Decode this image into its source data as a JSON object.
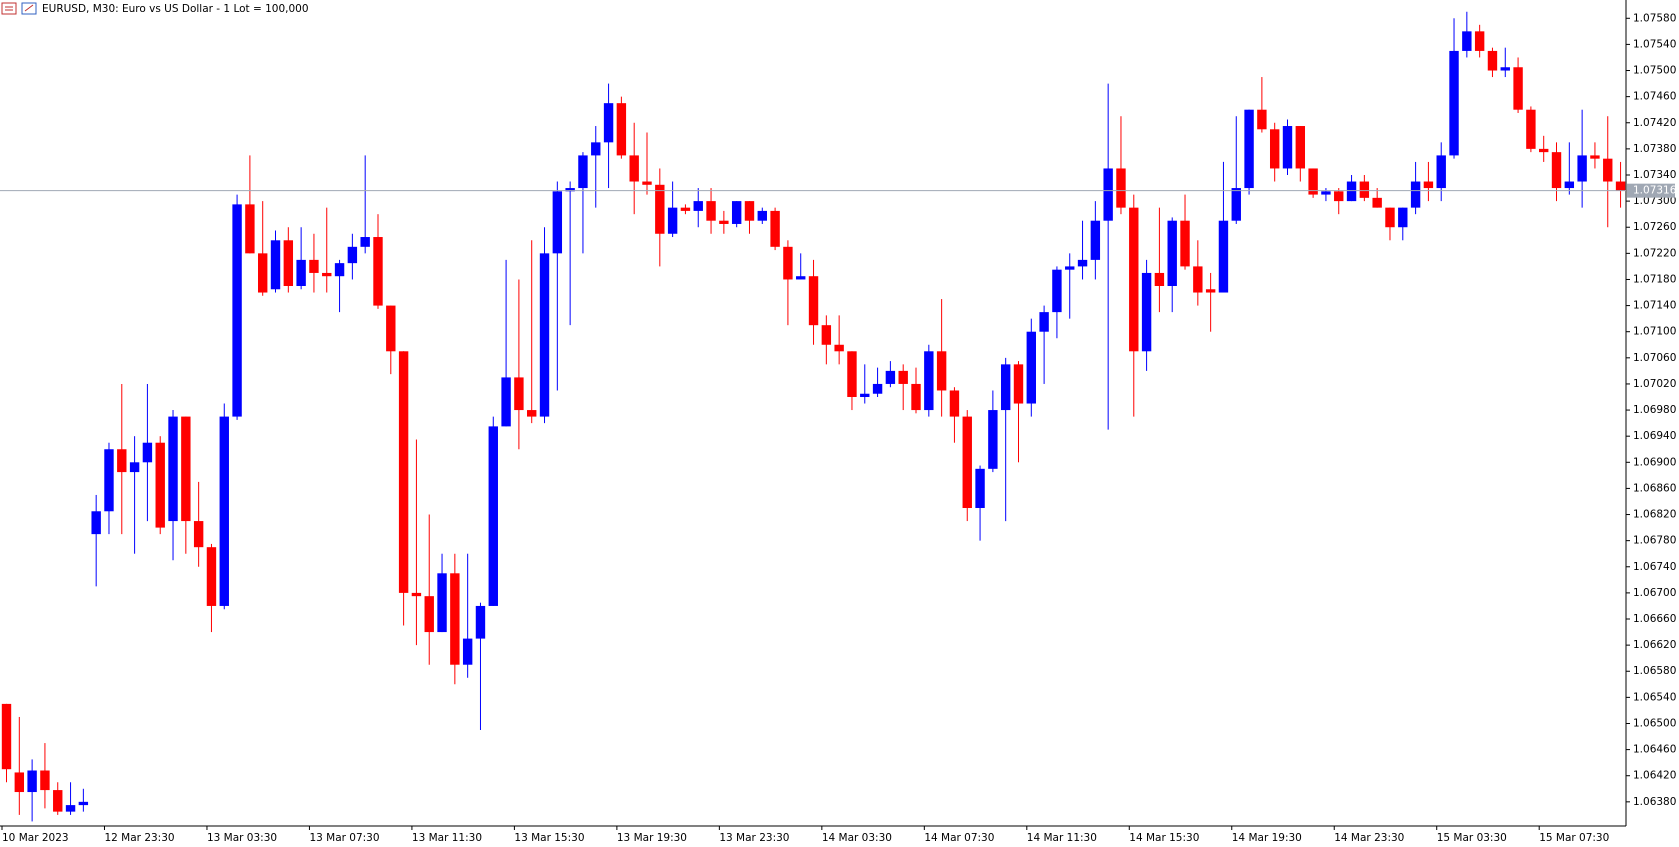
{
  "chart_data": {
    "type": "candlestick",
    "title": "EURUSD, M30:  Euro vs US Dollar - 1 Lot = 100,000",
    "up_color": "#0000ff",
    "down_color": "#ff0000",
    "last_price": 1.07316,
    "ylim": [
      1.06343,
      1.07608
    ],
    "yticks": [
      {
        "value": 1.0638,
        "label": "1.06380"
      },
      {
        "value": 1.0642,
        "label": "1.06420"
      },
      {
        "value": 1.0646,
        "label": "1.06460"
      },
      {
        "value": 1.065,
        "label": "1.06500"
      },
      {
        "value": 1.0654,
        "label": "1.06540"
      },
      {
        "value": 1.0658,
        "label": "1.06580"
      },
      {
        "value": 1.0662,
        "label": "1.06620"
      },
      {
        "value": 1.0666,
        "label": "1.06660"
      },
      {
        "value": 1.067,
        "label": "1.06700"
      },
      {
        "value": 1.0674,
        "label": "1.06740"
      },
      {
        "value": 1.0678,
        "label": "1.06780"
      },
      {
        "value": 1.0682,
        "label": "1.06820"
      },
      {
        "value": 1.0686,
        "label": "1.06860"
      },
      {
        "value": 1.069,
        "label": "1.06900"
      },
      {
        "value": 1.0694,
        "label": "1.06940"
      },
      {
        "value": 1.0698,
        "label": "1.06980"
      },
      {
        "value": 1.0702,
        "label": "1.07020"
      },
      {
        "value": 1.0706,
        "label": "1.07060"
      },
      {
        "value": 1.071,
        "label": "1.07100"
      },
      {
        "value": 1.0714,
        "label": "1.07140"
      },
      {
        "value": 1.0718,
        "label": "1.07180"
      },
      {
        "value": 1.0722,
        "label": "1.07220"
      },
      {
        "value": 1.0726,
        "label": "1.07260"
      },
      {
        "value": 1.073,
        "label": "1.07300"
      },
      {
        "value": 1.0734,
        "label": "1.07340"
      },
      {
        "value": 1.0738,
        "label": "1.07380"
      },
      {
        "value": 1.0742,
        "label": "1.07420"
      },
      {
        "value": 1.0746,
        "label": "1.07460"
      },
      {
        "value": 1.075,
        "label": "1.07500"
      },
      {
        "value": 1.0754,
        "label": "1.07540"
      },
      {
        "value": 1.0758,
        "label": "1.07580"
      }
    ],
    "categories": [
      "10 Mar 2023",
      null,
      null,
      null,
      null,
      null,
      null,
      null,
      "12 Mar 23:30",
      null,
      null,
      null,
      null,
      null,
      null,
      null,
      "13 Mar 03:30",
      null,
      null,
      null,
      null,
      null,
      null,
      null,
      "13 Mar 07:30",
      null,
      null,
      null,
      null,
      null,
      null,
      null,
      "13 Mar 11:30",
      null,
      null,
      null,
      null,
      null,
      null,
      null,
      "13 Mar 15:30",
      null,
      null,
      null,
      null,
      null,
      null,
      null,
      "13 Mar 19:30",
      null,
      null,
      null,
      null,
      null,
      null,
      null,
      "13 Mar 23:30",
      null,
      null,
      null,
      null,
      null,
      null,
      null,
      "14 Mar 03:30",
      null,
      null,
      null,
      null,
      null,
      null,
      null,
      "14 Mar 07:30",
      null,
      null,
      null,
      null,
      null,
      null,
      null,
      "14 Mar 11:30",
      null,
      null,
      null,
      null,
      null,
      null,
      null,
      "14 Mar 15:30",
      null,
      null,
      null,
      null,
      null,
      null,
      null,
      "14 Mar 19:30",
      null,
      null,
      null,
      null,
      null,
      null,
      null,
      "14 Mar 23:30",
      null,
      null,
      null,
      null,
      null,
      null,
      null,
      "15 Mar 03:30",
      null,
      null,
      null,
      null,
      null,
      null,
      null,
      "15 Mar 07:30",
      null,
      null,
      null,
      null,
      null,
      null
    ],
    "open": [
      1.0653,
      1.06425,
      1.06395,
      1.06428,
      1.06398,
      1.06365,
      1.06375,
      1.0679,
      1.06825,
      1.0692,
      1.06885,
      1.069,
      1.0693,
      1.0681,
      1.0697,
      1.0681,
      1.0677,
      1.0668,
      1.0697,
      1.07295,
      1.0722,
      1.07165,
      1.0724,
      1.0717,
      1.0721,
      1.0719,
      1.07185,
      1.07205,
      1.0723,
      1.07245,
      1.0714,
      1.0707,
      1.067,
      1.06695,
      1.0664,
      1.0673,
      1.0659,
      1.0663,
      1.0668,
      1.06955,
      1.0703,
      1.0698,
      1.0697,
      1.0722,
      1.07315,
      1.0732,
      1.0737,
      1.0739,
      1.0745,
      1.0737,
      1.0733,
      1.07325,
      1.0725,
      1.0729,
      1.07285,
      1.073,
      1.0727,
      1.07265,
      1.073,
      1.0727,
      1.07285,
      1.0723,
      1.0718,
      1.07185,
      1.0711,
      1.0708,
      1.0707,
      1.07,
      1.07005,
      1.0702,
      1.0704,
      1.0702,
      1.0698,
      1.0707,
      1.0701,
      1.0697,
      1.0683,
      1.0689,
      1.0698,
      1.0705,
      1.0699,
      1.071,
      1.0713,
      1.07195,
      1.072,
      1.0721,
      1.0727,
      1.0735,
      1.0729,
      1.0707,
      1.0719,
      1.0717,
      1.0727,
      1.072,
      1.07165,
      1.0716,
      1.0727,
      1.0732,
      1.0744,
      1.0741,
      1.0735,
      1.07415,
      1.0735,
      1.0731,
      1.07315,
      1.073,
      1.0733,
      1.07305,
      1.0729,
      1.0726,
      1.0729,
      1.0733,
      1.0732,
      1.0737,
      1.0753,
      1.0756,
      1.0753,
      1.075,
      1.07505,
      1.0744,
      1.0738,
      1.07375,
      1.0732,
      1.0733,
      1.0737,
      1.07365,
      1.0733
    ],
    "high": [
      1.0653,
      1.0651,
      1.06445,
      1.0647,
      1.0641,
      1.0641,
      1.064,
      1.0685,
      1.0693,
      1.0702,
      1.0694,
      1.0702,
      1.0694,
      1.0698,
      1.0697,
      1.0687,
      1.06775,
      1.0699,
      1.0731,
      1.0737,
      1.073,
      1.07255,
      1.0726,
      1.0726,
      1.0725,
      1.0729,
      1.0721,
      1.0725,
      1.0737,
      1.0728,
      1.0714,
      1.0707,
      1.06935,
      1.0682,
      1.0676,
      1.0676,
      1.0676,
      1.06685,
      1.0697,
      1.0721,
      1.0718,
      1.0724,
      1.0726,
      1.0733,
      1.0733,
      1.07375,
      1.07415,
      1.0748,
      1.0746,
      1.0742,
      1.07405,
      1.0735,
      1.0733,
      1.07295,
      1.0732,
      1.0732,
      1.07285,
      1.073,
      1.073,
      1.0729,
      1.0729,
      1.0724,
      1.0722,
      1.0721,
      1.07125,
      1.07125,
      1.0707,
      1.0705,
      1.07045,
      1.07055,
      1.0705,
      1.07045,
      1.0708,
      1.0715,
      1.07015,
      1.0698,
      1.06895,
      1.0701,
      1.0706,
      1.07055,
      1.0712,
      1.0714,
      1.072,
      1.0722,
      1.0727,
      1.073,
      1.0748,
      1.0743,
      1.0731,
      1.0721,
      1.0729,
      1.07275,
      1.0731,
      1.0724,
      1.0719,
      1.0736,
      1.0743,
      1.0744,
      1.0749,
      1.0742,
      1.07425,
      1.07415,
      1.0735,
      1.0732,
      1.0732,
      1.0734,
      1.0734,
      1.0732,
      1.0729,
      1.0729,
      1.0736,
      1.0736,
      1.0739,
      1.0758,
      1.0759,
      1.0757,
      1.07535,
      1.07535,
      1.0752,
      1.07445,
      1.074,
      1.0739,
      1.0739,
      1.0744,
      1.0739,
      1.0743,
      1.0736
    ],
    "low": [
      1.0641,
      1.0636,
      1.0635,
      1.0637,
      1.0636,
      1.0636,
      1.06365,
      1.0671,
      1.0679,
      1.0679,
      1.0676,
      1.0681,
      1.0679,
      1.0675,
      1.0676,
      1.0674,
      1.0664,
      1.06675,
      1.06965,
      1.0722,
      1.07155,
      1.0716,
      1.0716,
      1.07165,
      1.0716,
      1.0716,
      1.0713,
      1.0718,
      1.0722,
      1.07135,
      1.07035,
      1.0665,
      1.0662,
      1.0659,
      1.0664,
      1.0656,
      1.0657,
      1.0649,
      1.0668,
      1.06955,
      1.0692,
      1.0696,
      1.0696,
      1.0701,
      1.0711,
      1.0722,
      1.0729,
      1.0732,
      1.07365,
      1.0728,
      1.0731,
      1.072,
      1.07245,
      1.0728,
      1.0726,
      1.0725,
      1.0725,
      1.0726,
      1.0725,
      1.07265,
      1.07225,
      1.0711,
      1.0718,
      1.0708,
      1.0705,
      1.0705,
      1.0698,
      1.0699,
      1.07,
      1.07015,
      1.0698,
      1.06975,
      1.0697,
      1.0697,
      1.0693,
      1.0681,
      1.0678,
      1.06885,
      1.0681,
      1.069,
      1.0697,
      1.0702,
      1.0709,
      1.0712,
      1.0718,
      1.0718,
      1.0695,
      1.0728,
      1.0697,
      1.0704,
      1.0713,
      1.0713,
      1.07195,
      1.0714,
      1.071,
      1.0716,
      1.07265,
      1.0731,
      1.07405,
      1.0733,
      1.0734,
      1.0733,
      1.07305,
      1.073,
      1.0728,
      1.073,
      1.073,
      1.0729,
      1.0724,
      1.0724,
      1.0728,
      1.073,
      1.073,
      1.07365,
      1.0752,
      1.0752,
      1.0749,
      1.0749,
      1.07435,
      1.07375,
      1.0736,
      1.073,
      1.0731,
      1.0729,
      1.0735,
      1.0726,
      1.0729
    ],
    "close": [
      1.0643,
      1.06395,
      1.06428,
      1.06398,
      1.06365,
      1.06375,
      1.0638,
      1.06825,
      1.0692,
      1.06885,
      1.069,
      1.0693,
      1.068,
      1.0697,
      1.0681,
      1.0677,
      1.0668,
      1.0697,
      1.07295,
      1.0722,
      1.0716,
      1.0724,
      1.0717,
      1.0721,
      1.0719,
      1.07185,
      1.07205,
      1.0723,
      1.07245,
      1.0714,
      1.0707,
      1.067,
      1.06695,
      1.0664,
      1.0673,
      1.0659,
      1.0663,
      1.0668,
      1.06955,
      1.0703,
      1.0698,
      1.0697,
      1.0722,
      1.07315,
      1.0732,
      1.0737,
      1.0739,
      1.0745,
      1.0737,
      1.0733,
      1.07325,
      1.0725,
      1.0729,
      1.07285,
      1.073,
      1.0727,
      1.07265,
      1.073,
      1.0727,
      1.07285,
      1.0723,
      1.0718,
      1.07185,
      1.0711,
      1.0708,
      1.0707,
      1.07,
      1.07005,
      1.0702,
      1.0704,
      1.0702,
      1.0698,
      1.0707,
      1.0701,
      1.0697,
      1.0683,
      1.0689,
      1.0698,
      1.0705,
      1.0699,
      1.071,
      1.0713,
      1.07195,
      1.072,
      1.0721,
      1.0727,
      1.0735,
      1.0729,
      1.0707,
      1.0719,
      1.0717,
      1.0727,
      1.072,
      1.0716,
      1.0716,
      1.0727,
      1.0732,
      1.0744,
      1.0741,
      1.0735,
      1.07415,
      1.0735,
      1.0731,
      1.07315,
      1.073,
      1.0733,
      1.07305,
      1.0729,
      1.0726,
      1.0729,
      1.0733,
      1.0732,
      1.0737,
      1.0753,
      1.0756,
      1.0753,
      1.075,
      1.07505,
      1.0744,
      1.0738,
      1.07375,
      1.0732,
      1.0733,
      1.0737,
      1.07365,
      1.0733,
      1.07316
    ]
  }
}
